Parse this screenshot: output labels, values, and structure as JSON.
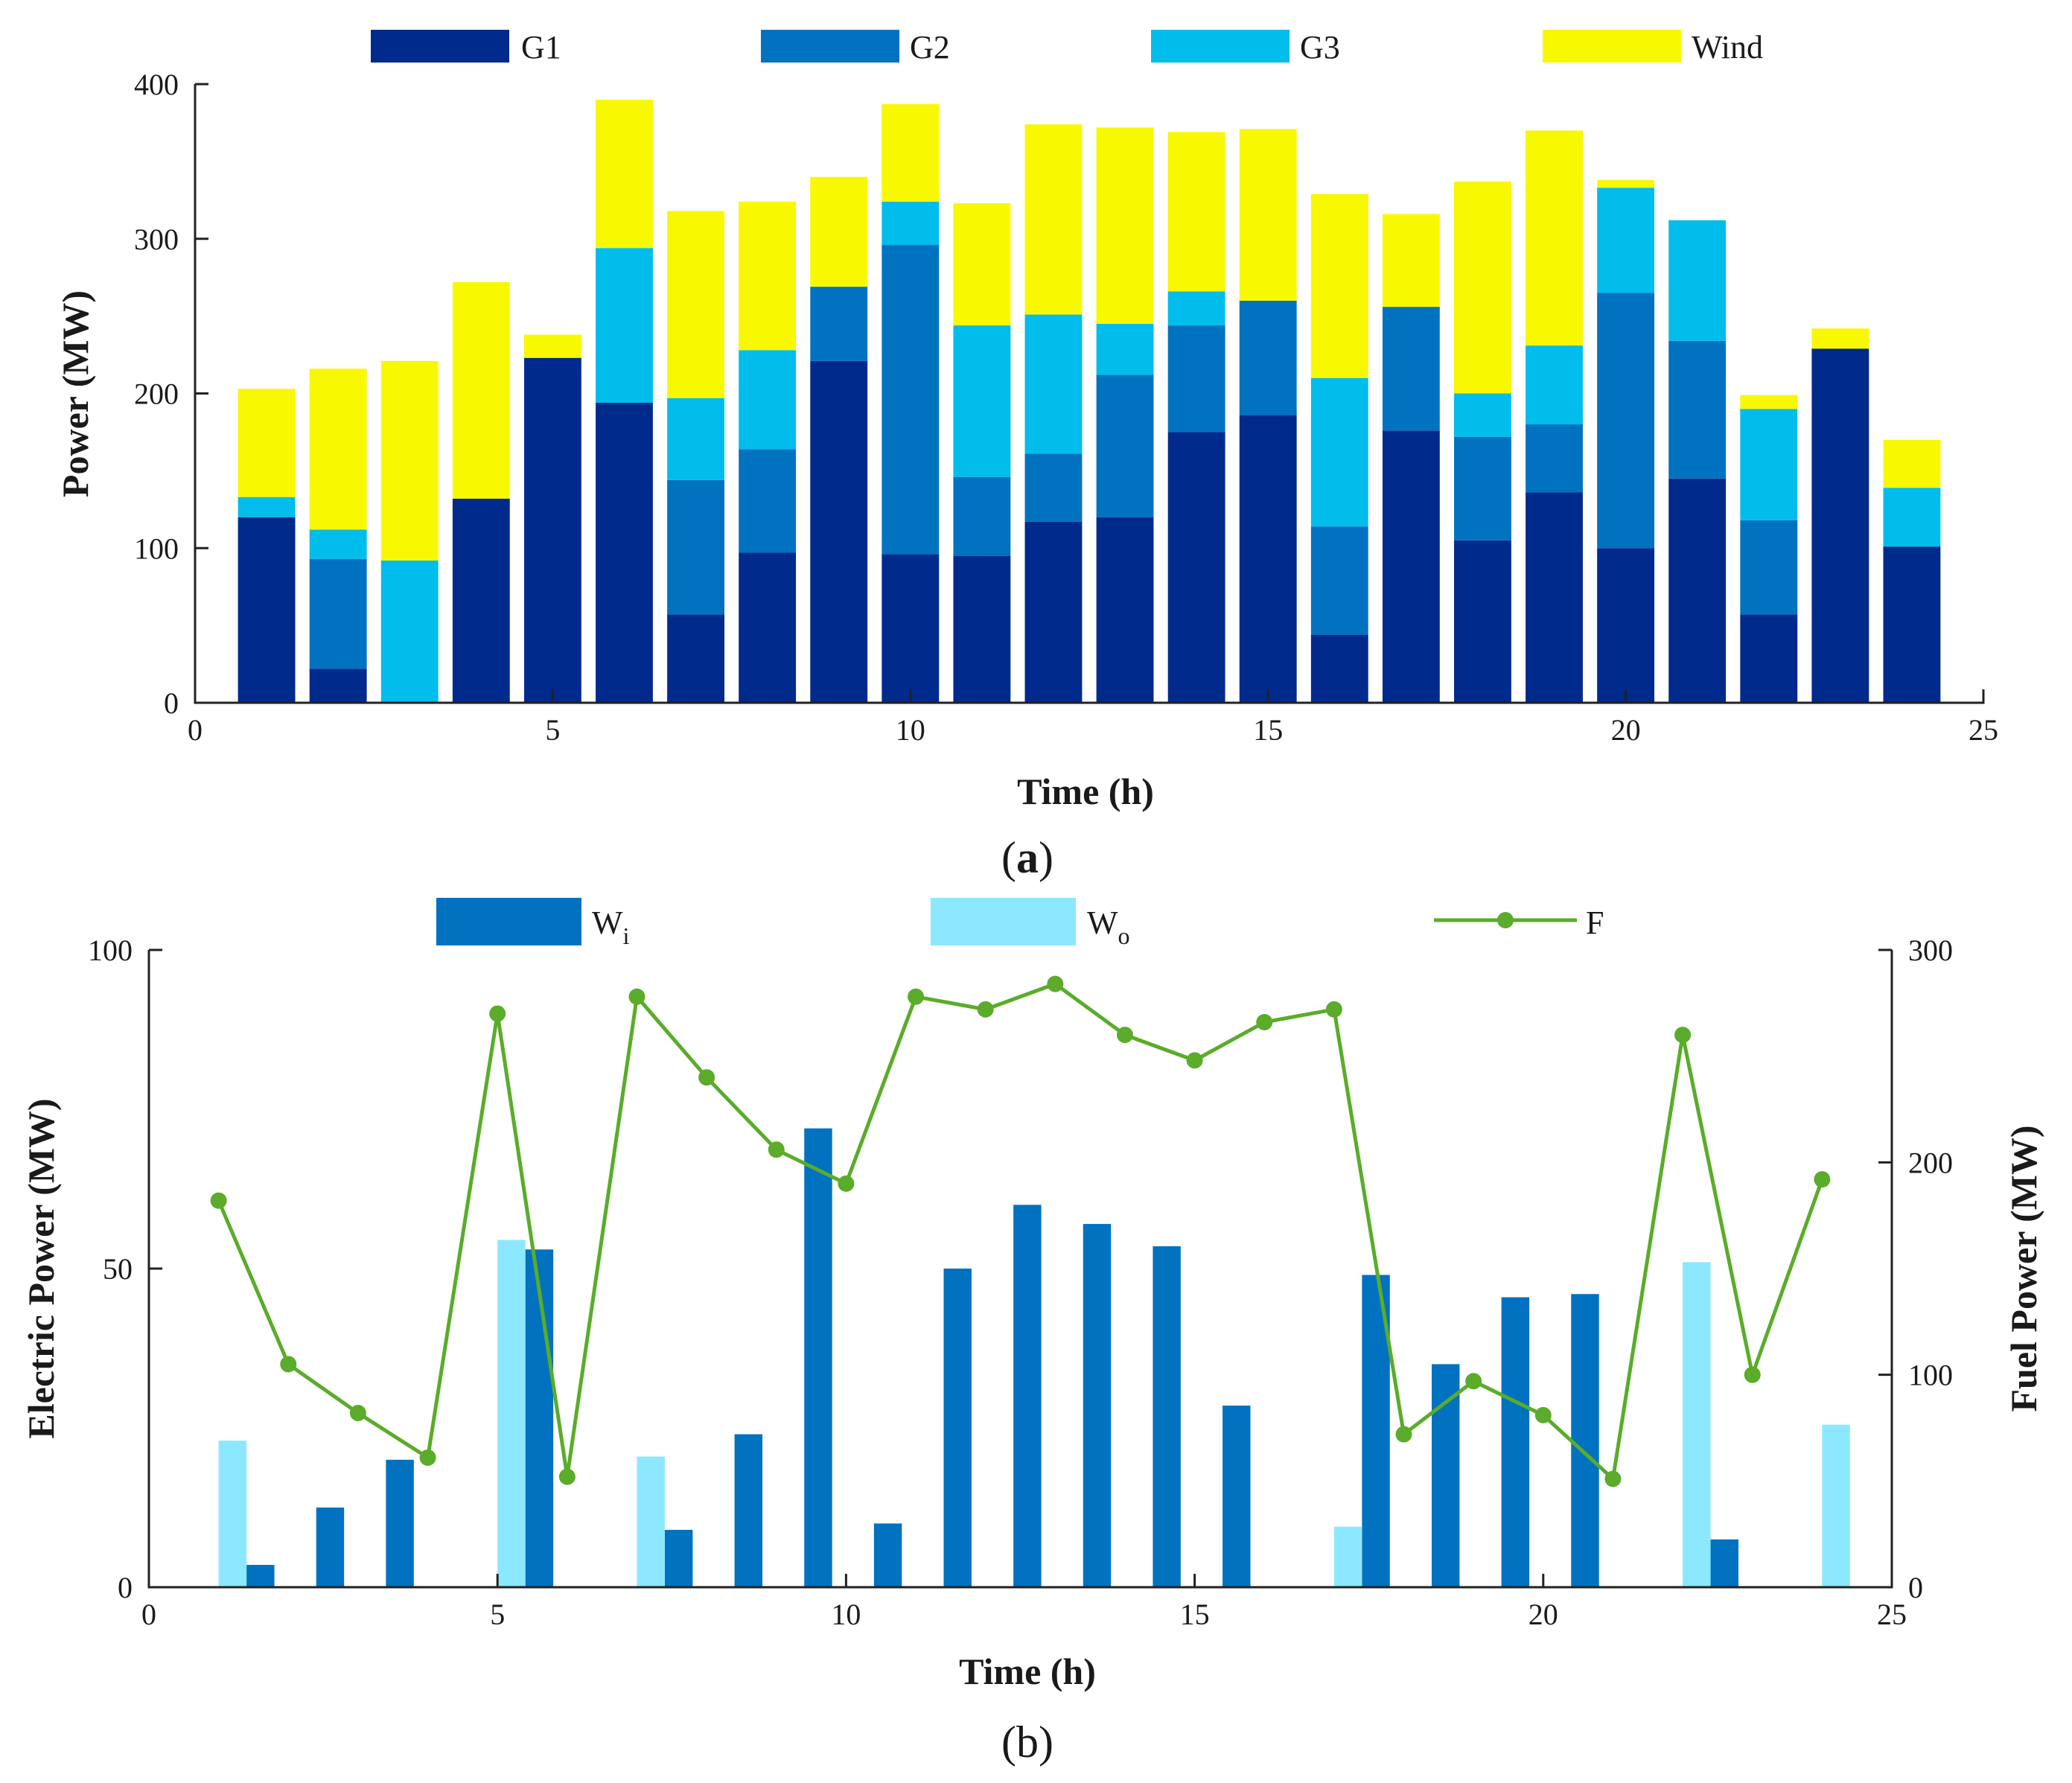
{
  "colors": {
    "G1": "#002a8c",
    "G2": "#0072c0",
    "G3": "#00bdeb",
    "Wind": "#f8f800",
    "Wi": "#0072c0",
    "Wo": "#8ce8ff",
    "F": "#5aac2a"
  },
  "chart_data": [
    {
      "type": "bar",
      "stacked": true,
      "caption_label": "a",
      "xlabel": "Time (h)",
      "ylabel": "Power (MW)",
      "xlim": [
        0,
        25
      ],
      "ylim": [
        0,
        400
      ],
      "xticks": [
        0,
        5,
        10,
        15,
        20,
        25
      ],
      "yticks": [
        0,
        100,
        200,
        300,
        400
      ],
      "legend_placement": "top",
      "x": [
        1,
        2,
        3,
        4,
        5,
        6,
        7,
        8,
        9,
        10,
        11,
        12,
        13,
        14,
        15,
        16,
        17,
        18,
        19,
        20,
        21,
        22,
        23,
        24
      ],
      "series": [
        {
          "name": "G1",
          "values": [
            120,
            22,
            0,
            132,
            223,
            194,
            57,
            97,
            221,
            96,
            95,
            117,
            120,
            175,
            186,
            44,
            176,
            105,
            136,
            100,
            145,
            57,
            229,
            101
          ]
        },
        {
          "name": "G2",
          "values": [
            0,
            71,
            0,
            0,
            0,
            0,
            87,
            67,
            48,
            200,
            51,
            44,
            92,
            69,
            74,
            70,
            80,
            67,
            44,
            165,
            89,
            61,
            0,
            0
          ]
        },
        {
          "name": "G3",
          "values": [
            13,
            19,
            92,
            0,
            0,
            100,
            53,
            64,
            0,
            28,
            98,
            90,
            33,
            22,
            0,
            96,
            0,
            28,
            51,
            68,
            78,
            72,
            0,
            38
          ]
        },
        {
          "name": "Wind",
          "values": [
            70,
            104,
            129,
            140,
            15,
            96,
            121,
            96,
            71,
            63,
            79,
            123,
            127,
            103,
            111,
            119,
            60,
            137,
            139,
            5,
            0,
            9,
            13,
            31
          ]
        }
      ]
    },
    {
      "type": "bar+line",
      "caption_label": "b",
      "xlabel": "Time (h)",
      "ylabel_left": "Electric Power (MW)",
      "ylabel_right": "Fuel Power (MW)",
      "xlim": [
        0,
        25
      ],
      "ylim_left": [
        0,
        100
      ],
      "ylim_right": [
        0,
        300
      ],
      "xticks": [
        0,
        5,
        10,
        15,
        20,
        25
      ],
      "yticks_left": [
        0,
        50,
        100
      ],
      "yticks_right": [
        0,
        100,
        200,
        300
      ],
      "legend_placement": "top",
      "x": [
        1,
        2,
        3,
        4,
        5,
        6,
        7,
        8,
        9,
        10,
        11,
        12,
        13,
        14,
        15,
        16,
        17,
        18,
        19,
        20,
        21,
        22,
        23,
        24
      ],
      "bars": [
        {
          "name": "W",
          "sub": "i",
          "values": [
            0,
            3.5,
            12.5,
            20,
            0,
            53,
            0,
            9,
            24,
            72,
            10,
            50,
            60,
            57,
            53.5,
            28.5,
            0,
            49,
            35,
            45.5,
            46,
            0,
            7.5,
            0
          ]
        },
        {
          "name": "W",
          "sub": "o",
          "values": [
            23,
            0,
            0,
            0,
            54.5,
            0,
            20.5,
            0,
            0,
            0,
            0,
            0,
            0,
            0,
            0,
            0,
            9.5,
            0,
            0,
            0,
            0,
            51,
            0,
            25.5
          ]
        }
      ],
      "line": {
        "name": "F",
        "axis": "right",
        "values": [
          182,
          105,
          82,
          61,
          270,
          52,
          278,
          240,
          206,
          190,
          278,
          272,
          284,
          260,
          248,
          266,
          272,
          72,
          97,
          81,
          51,
          260,
          100,
          192
        ]
      }
    }
  ]
}
